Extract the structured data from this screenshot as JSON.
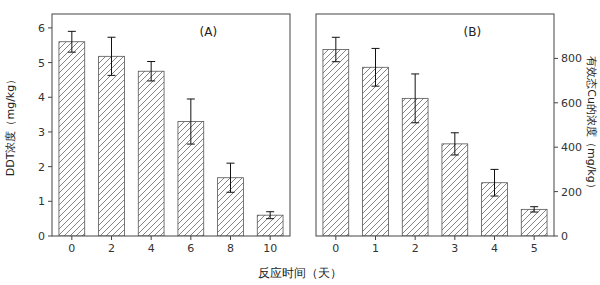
{
  "chart_data": [
    {
      "type": "bar",
      "annotation": "(A)",
      "categories": [
        "0",
        "2",
        "4",
        "6",
        "8",
        "10"
      ],
      "values": [
        5.6,
        5.18,
        4.75,
        3.3,
        1.68,
        0.6
      ],
      "errors": [
        0.3,
        0.55,
        0.28,
        0.65,
        0.42,
        0.1
      ],
      "ylabel": "DDT浓度（mg/kg）",
      "xlabel": "反应时间（天）",
      "ylim": [
        0,
        6.4
      ],
      "yticks": [
        0,
        1,
        2,
        3,
        4,
        5,
        6
      ],
      "color": "white"
    },
    {
      "type": "bar",
      "annotation": "(B)",
      "categories": [
        "0",
        "1",
        "2",
        "3",
        "4",
        "5"
      ],
      "values": [
        840,
        760,
        620,
        415,
        240,
        120
      ],
      "errors": [
        55,
        85,
        110,
        50,
        60,
        12
      ],
      "ylabel": "有效态Cu的浓度（mg/kg）",
      "ylim": [
        0,
        1000
      ],
      "yticks": [
        0,
        200,
        400,
        600,
        800
      ],
      "color": "white"
    }
  ]
}
